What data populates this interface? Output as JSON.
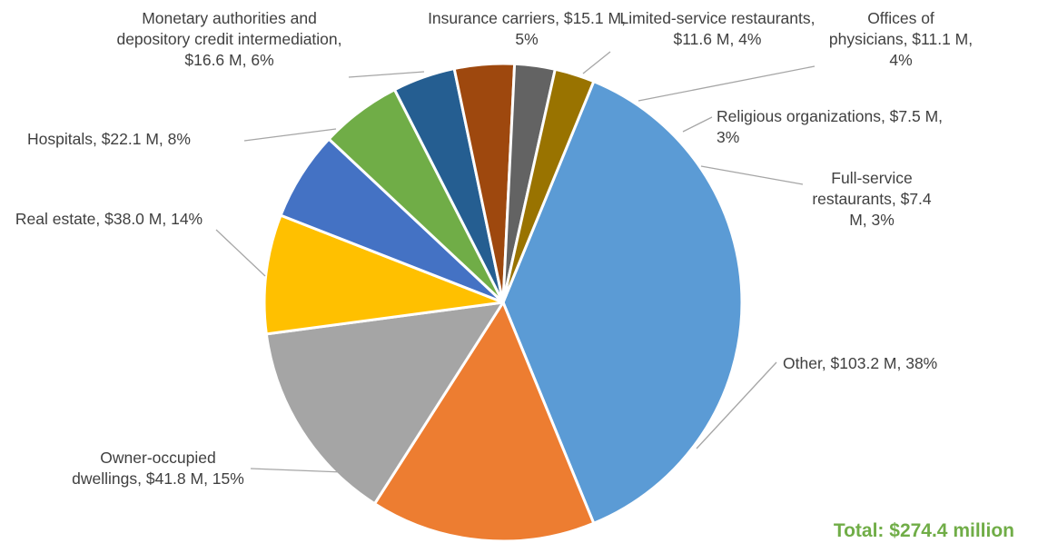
{
  "chart_data": {
    "type": "pie",
    "unit": "$ M",
    "slices": [
      {
        "label": "Other",
        "value": 103.2,
        "percent": 38,
        "color": "#5B9BD5",
        "text": "Other, $103.2 M, 38%"
      },
      {
        "label": "Owner-occupied dwellings",
        "value": 41.8,
        "percent": 15,
        "color": "#ED7D31",
        "text": "Owner-occupied dwellings, $41.8 M, 15%"
      },
      {
        "label": "Real estate",
        "value": 38.0,
        "percent": 14,
        "color": "#A5A5A5",
        "text": "Real estate, $38.0 M, 14%"
      },
      {
        "label": "Hospitals",
        "value": 22.1,
        "percent": 8,
        "color": "#FFC000",
        "text": "Hospitals, $22.1 M, 8%"
      },
      {
        "label": "Monetary authorities and depository credit intermediation",
        "value": 16.6,
        "percent": 6,
        "color": "#4472C4",
        "text": "Monetary authorities and depository credit intermediation, $16.6 M, 6%"
      },
      {
        "label": "Insurance carriers",
        "value": 15.1,
        "percent": 5,
        "color": "#70AD47",
        "text": "Insurance carriers, $15.1 M, 5%"
      },
      {
        "label": "Limited-service restaurants",
        "value": 11.6,
        "percent": 4,
        "color": "#255E91",
        "text": "Limited-service restaurants, $11.6 M, 4%"
      },
      {
        "label": "Offices of physicians",
        "value": 11.1,
        "percent": 4,
        "color": "#9E480E",
        "text": "Offices of physicians, $11.1 M, 4%"
      },
      {
        "label": "Religious organizations",
        "value": 7.5,
        "percent": 3,
        "color": "#636363",
        "text": "Religious organizations, $7.5 M, 3%"
      },
      {
        "label": "Full-service restaurants",
        "value": 7.4,
        "percent": 3,
        "color": "#997300",
        "text": "Full-service restaurants, $7.4 M, 3%"
      }
    ],
    "total_label": "Total: $274.4 million",
    "legend": "none"
  }
}
